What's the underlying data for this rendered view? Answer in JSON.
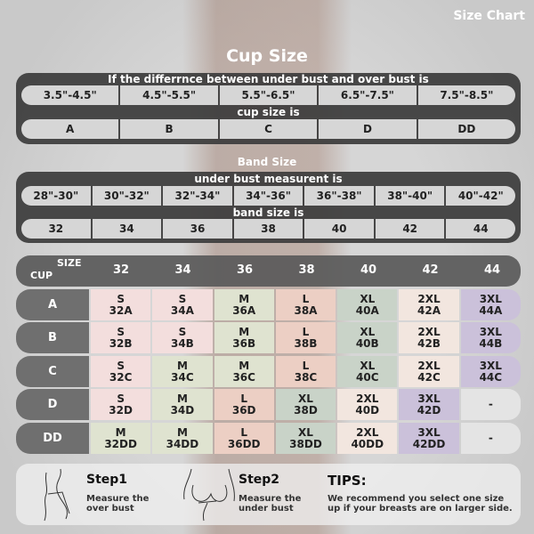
{
  "header_title": "Size Chart",
  "cup": {
    "title": "Cup Size",
    "intro": "If the differrnce between under bust and over bust is",
    "ranges": [
      "3.5\"-4.5\"",
      "4.5\"-5.5\"",
      "5.5\"-6.5\"",
      "6.5\"-7.5\"",
      "7.5\"-8.5\""
    ],
    "mid": "cup size is",
    "cups": [
      "A",
      "B",
      "C",
      "D",
      "DD"
    ]
  },
  "band": {
    "title": "Band Size",
    "intro": "under bust measurent is",
    "ranges": [
      "28\"-30\"",
      "30\"-32\"",
      "32\"-34\"",
      "34\"-36\"",
      "36\"-38\"",
      "38\"-40\"",
      "40\"-42\""
    ],
    "mid": "band size is",
    "bands": [
      "32",
      "34",
      "36",
      "38",
      "40",
      "42",
      "44"
    ]
  },
  "grid": {
    "size_label": "SIZE",
    "cup_label": "CUP",
    "columns": [
      "32",
      "34",
      "36",
      "38",
      "40",
      "42",
      "44"
    ],
    "rows": [
      {
        "cup": "A",
        "cells": [
          [
            "S",
            "32A"
          ],
          [
            "S",
            "34A"
          ],
          [
            "M",
            "36A"
          ],
          [
            "L",
            "38A"
          ],
          [
            "XL",
            "40A"
          ],
          [
            "2XL",
            "42A"
          ],
          [
            "3XL",
            "44A"
          ]
        ]
      },
      {
        "cup": "B",
        "cells": [
          [
            "S",
            "32B"
          ],
          [
            "S",
            "34B"
          ],
          [
            "M",
            "36B"
          ],
          [
            "L",
            "38B"
          ],
          [
            "XL",
            "40B"
          ],
          [
            "2XL",
            "42B"
          ],
          [
            "3XL",
            "44B"
          ]
        ]
      },
      {
        "cup": "C",
        "cells": [
          [
            "S",
            "32C"
          ],
          [
            "M",
            "34C"
          ],
          [
            "M",
            "36C"
          ],
          [
            "L",
            "38C"
          ],
          [
            "XL",
            "40C"
          ],
          [
            "2XL",
            "42C"
          ],
          [
            "3XL",
            "44C"
          ]
        ]
      },
      {
        "cup": "D",
        "cells": [
          [
            "S",
            "32D"
          ],
          [
            "M",
            "34D"
          ],
          [
            "L",
            "36D"
          ],
          [
            "XL",
            "38D"
          ],
          [
            "2XL",
            "40D"
          ],
          [
            "3XL",
            "42D"
          ],
          [
            "-",
            ""
          ]
        ]
      },
      {
        "cup": "DD",
        "cells": [
          [
            "M",
            "32DD"
          ],
          [
            "M",
            "34DD"
          ],
          [
            "L",
            "36DD"
          ],
          [
            "XL",
            "38DD"
          ],
          [
            "2XL",
            "40DD"
          ],
          [
            "3XL",
            "42DD"
          ],
          [
            "-",
            ""
          ]
        ]
      }
    ],
    "size_colors": {
      "S": "#f3dedd",
      "M": "#dfe3d0",
      "L": "#eccfc4",
      "XL": "#c9d3c8",
      "2XL": "#f2e6df",
      "3XL": "#cbc1da",
      "-": "#e4e4e4"
    }
  },
  "steps": [
    {
      "title": "Step1",
      "desc": "Measure the over bust"
    },
    {
      "title": "Step2",
      "desc": "Measure the under bust"
    }
  ],
  "tips": {
    "title": "TIPS:",
    "text": "We recommend you select one size up if your breasts are on larger side."
  }
}
